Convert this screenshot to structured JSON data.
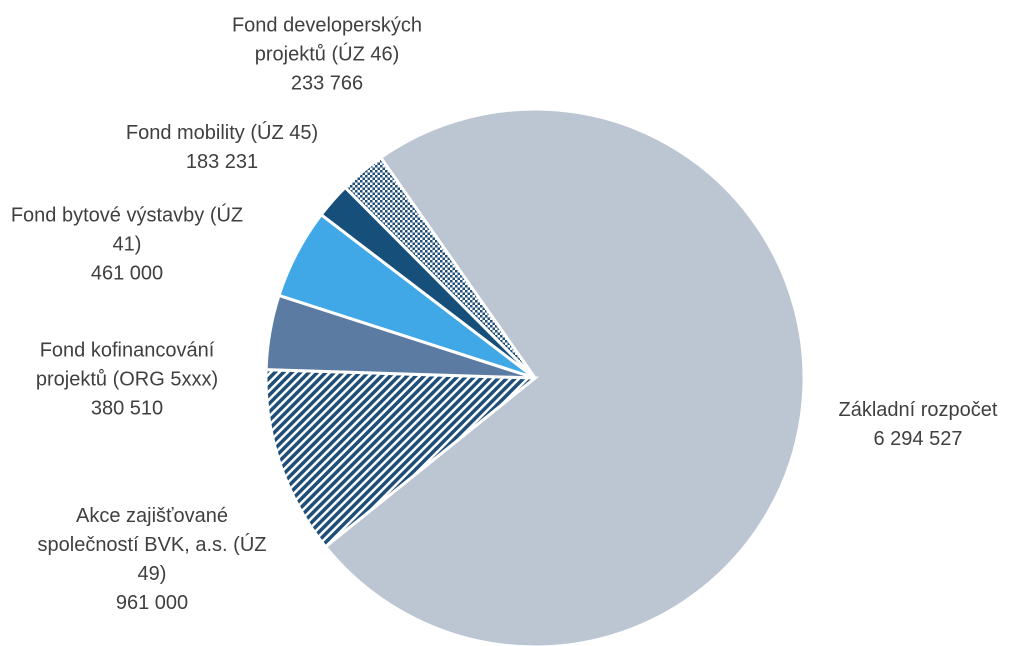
{
  "chart_data": {
    "type": "pie",
    "categories": [
      "Základní rozpočet",
      "Akce zajišťované společností BVK, a.s. (ÚZ 49)",
      "Fond kofinancování projektů (ORG 5xxx)",
      "Fond bytové výstavby (ÚZ 41)",
      "Fond mobility (ÚZ 45)",
      "Fond developerských projektů (ÚZ 46)"
    ],
    "values": [
      6294527,
      961000,
      380510,
      461000,
      183231,
      233766
    ],
    "value_labels": [
      "6 294 527",
      "961 000",
      "380 510",
      "461 000",
      "183 231",
      "233 766"
    ],
    "colors": [
      "#bcc6d3",
      "#1f4e79",
      "#5b7ba3",
      "#41a8e8",
      "#154f7a",
      "#1f4e79"
    ],
    "patterns": [
      null,
      "diagonal",
      null,
      null,
      null,
      "checker"
    ]
  }
}
